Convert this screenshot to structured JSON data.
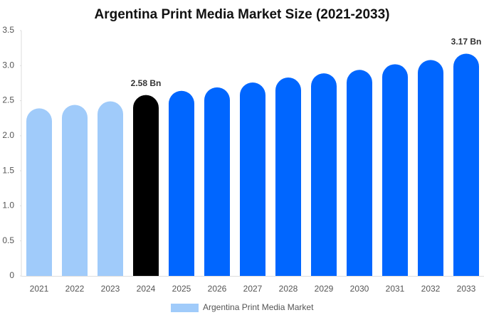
{
  "chart_data": {
    "type": "bar",
    "title": "Argentina Print Media Market Size (2021-2033)",
    "categories": [
      "2021",
      "2022",
      "2023",
      "2024",
      "2025",
      "2026",
      "2027",
      "2028",
      "2029",
      "2030",
      "2031",
      "2032",
      "2033"
    ],
    "series": [
      {
        "name": "Argentina Print Media Market",
        "color": "#a0cbfa",
        "values": [
          2.39,
          2.44,
          2.49,
          2.58,
          2.64,
          2.69,
          2.76,
          2.83,
          2.89,
          2.94,
          3.02,
          3.08,
          3.17
        ],
        "value_labels": [
          null,
          null,
          null,
          "2.58 Bn",
          null,
          null,
          null,
          null,
          null,
          null,
          null,
          null,
          "3.17 Bn"
        ],
        "colors": [
          "#a0cbfa",
          "#a0cbfa",
          "#a0cbfa",
          "#000000",
          "#0066ff",
          "#0066ff",
          "#0066ff",
          "#0066ff",
          "#0066ff",
          "#0066ff",
          "#0066ff",
          "#0066ff",
          "#0066ff"
        ]
      }
    ],
    "ylim": [
      0,
      3.5
    ],
    "yticks": [
      0,
      0.5,
      {
        "value": 1,
        "label": "1.0"
      },
      1.5,
      {
        "value": 2,
        "label": "2.0"
      },
      2.5,
      {
        "value": 3,
        "label": "3.0"
      },
      3.5
    ]
  }
}
